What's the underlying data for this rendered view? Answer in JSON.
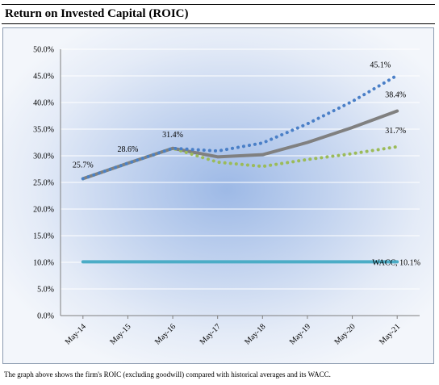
{
  "title": "Return on Invested Capital (ROIC)",
  "caption": "The graph above shows the firm's ROIC (excluding goodwill) compared with historical averages and its WACC.",
  "chart_data": {
    "type": "line",
    "categories": [
      "May-14",
      "May-15",
      "May-16",
      "May-17",
      "May-18",
      "May-19",
      "May-20",
      "May-21"
    ],
    "ylim": [
      0,
      50
    ],
    "yticks": [
      "0.0%",
      "5.0%",
      "10.0%",
      "15.0%",
      "20.0%",
      "25.0%",
      "30.0%",
      "35.0%",
      "40.0%",
      "45.0%",
      "50.0%"
    ],
    "grid": true,
    "series": [
      {
        "values": [
          25.7,
          28.6,
          31.4,
          29.8,
          30.2,
          32.5,
          35.3,
          38.4
        ],
        "color": "#808080",
        "style": "solid"
      },
      {
        "values": [
          25.7,
          28.6,
          31.4,
          30.9,
          32.4,
          36.0,
          40.2,
          45.1
        ],
        "color": "#4a7fc7",
        "style": "dotted"
      },
      {
        "values": [
          25.7,
          28.6,
          31.4,
          28.8,
          28.0,
          29.3,
          30.4,
          31.7
        ],
        "color": "#9bbb59",
        "style": "dotted"
      },
      {
        "name": "WACC",
        "values": [
          10.1,
          10.1,
          10.1,
          10.1,
          10.1,
          10.1,
          10.1,
          10.1
        ],
        "color": "#4bacc6",
        "style": "solid"
      }
    ],
    "data_labels": [
      {
        "text": "25.7%",
        "series": 0,
        "index": 0
      },
      {
        "text": "28.6%",
        "series": 0,
        "index": 1
      },
      {
        "text": "31.4%",
        "series": 0,
        "index": 2
      },
      {
        "text": "45.1%",
        "series": 1,
        "index": 7
      },
      {
        "text": "38.4%",
        "series": 0,
        "index": 7
      },
      {
        "text": "31.7%",
        "series": 2,
        "index": 7
      },
      {
        "text": "WACC, 10.1%",
        "series": 3,
        "index": 7
      }
    ]
  }
}
